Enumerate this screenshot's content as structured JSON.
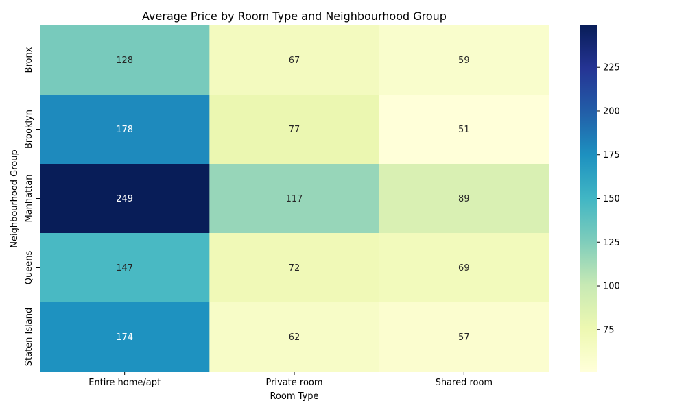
{
  "chart_data": {
    "type": "heatmap",
    "title": "Average Price by Room Type and Neighbourhood Group",
    "xlabel": "Room Type",
    "ylabel": "Neighbourhood Group",
    "x_categories": [
      "Entire home/apt",
      "Private room",
      "Shared room"
    ],
    "y_categories": [
      "Bronx",
      "Brooklyn",
      "Manhattan",
      "Queens",
      "Staten Island"
    ],
    "values": [
      [
        128,
        67,
        59
      ],
      [
        178,
        77,
        51
      ],
      [
        249,
        117,
        89
      ],
      [
        147,
        72,
        69
      ],
      [
        174,
        62,
        57
      ]
    ],
    "colormap": "YlGnBu",
    "colorbar": {
      "min": 51,
      "max": 249,
      "ticks": [
        75,
        100,
        125,
        150,
        175,
        200,
        225
      ]
    }
  }
}
